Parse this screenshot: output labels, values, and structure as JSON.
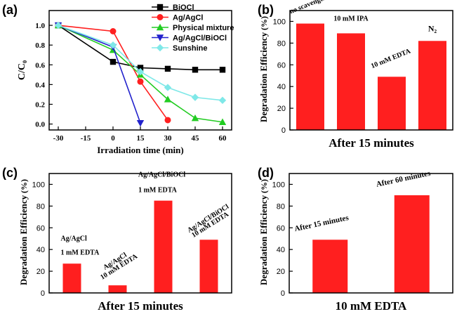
{
  "colors": {
    "bar": "#ff1f1f",
    "axis": "#000000",
    "biocl": "#000000",
    "ag_agcl": "#ff2020",
    "physical": "#22cc22",
    "ag_agcl_biocl": "#2222cc",
    "sunshine": "#7fe8e8"
  },
  "chart_data": [
    {
      "panel": "a",
      "panel_label": "(a)",
      "type": "line",
      "xlabel": "Irradiation time (min)",
      "ylabel": "C/C₀",
      "xlim": [
        -35,
        65
      ],
      "ylim": [
        -0.06,
        1.15
      ],
      "xticks": [
        -30,
        -15,
        0,
        15,
        30,
        45,
        60
      ],
      "xtick_labels": [
        "-30",
        "-15",
        "0",
        "15",
        "30",
        "45",
        "60"
      ],
      "yticks": [
        0.0,
        0.2,
        0.4,
        0.6,
        0.8,
        1.0
      ],
      "ytick_labels": [
        "0.0",
        "0.2",
        "0.4",
        "0.6",
        "0.8",
        "1.0"
      ],
      "legend_position": "top-right",
      "series": [
        {
          "name": "BiOCl",
          "marker": "square",
          "color_key": "biocl",
          "x": [
            -30,
            0,
            15,
            30,
            45,
            60
          ],
          "y": [
            1.0,
            0.63,
            0.57,
            0.56,
            0.55,
            0.55
          ]
        },
        {
          "name": "Ag/AgCl",
          "marker": "circle",
          "color_key": "ag_agcl",
          "x": [
            -30,
            0,
            15,
            30
          ],
          "y": [
            1.0,
            0.94,
            0.43,
            0.04
          ]
        },
        {
          "name": "Physical mixture",
          "marker": "triangle-up",
          "color_key": "physical",
          "x": [
            -30,
            0,
            15,
            30,
            45,
            60
          ],
          "y": [
            1.0,
            0.75,
            0.5,
            0.25,
            0.06,
            0.02
          ]
        },
        {
          "name": "Ag/AgCl/BiOCl",
          "marker": "triangle-down",
          "color_key": "ag_agcl_biocl",
          "x": [
            -30,
            0,
            15
          ],
          "y": [
            1.0,
            0.78,
            0.01
          ]
        },
        {
          "name": "Sunshine",
          "marker": "diamond",
          "color_key": "sunshine",
          "x": [
            -30,
            0,
            15,
            30,
            45,
            60
          ],
          "y": [
            1.0,
            0.8,
            0.53,
            0.37,
            0.27,
            0.24
          ]
        }
      ]
    },
    {
      "panel": "b",
      "panel_label": "(b)",
      "type": "bar",
      "title": "After 15 minutes",
      "ylabel": "Degradation Efficiency",
      "ylabel_unit": "(%)",
      "ylim": [
        0,
        110
      ],
      "yticks": [
        0,
        20,
        40,
        60,
        80,
        100
      ],
      "ytick_labels": [
        "0",
        "20",
        "40",
        "60",
        "80",
        "100"
      ],
      "categories": [
        "no scavenger",
        "10 mM IPA",
        "10 mM EDTA",
        "N₂"
      ],
      "values": [
        98,
        89,
        49,
        82
      ]
    },
    {
      "panel": "c",
      "panel_label": "(c)",
      "type": "bar",
      "title": "After 15 minutes",
      "ylabel": "Degradation Efficiency",
      "ylabel_unit": "(%)",
      "ylim": [
        0,
        110
      ],
      "yticks": [
        0,
        20,
        40,
        60,
        80,
        100
      ],
      "ytick_labels": [
        "0",
        "20",
        "40",
        "60",
        "80",
        "100"
      ],
      "categories": [
        "Ag/AgCl 1 mM EDTA",
        "Ag/AgCl 10 mM EDTA",
        "Ag/AgCl/BiOCl 1 mM EDTA",
        "Ag/AgCl/BiOCl 10 mM EDTA"
      ],
      "category_lines": [
        [
          "Ag/AgCl",
          "1 mM EDTA"
        ],
        [
          "Ag/AgCl",
          "10 mM EDTA"
        ],
        [
          "Ag/AgCl/BiOCl",
          "1 mM EDTA"
        ],
        [
          "Ag/AgCl/BiOCl",
          "10 mM EDTA"
        ]
      ],
      "values": [
        27,
        7,
        85,
        49
      ]
    },
    {
      "panel": "d",
      "panel_label": "(d)",
      "type": "bar",
      "title": "10 mM EDTA",
      "ylabel": "Degradation Efficiency",
      "ylabel_unit": "(%)",
      "ylim": [
        0,
        110
      ],
      "yticks": [
        0,
        20,
        40,
        60,
        80,
        100
      ],
      "ytick_labels": [
        "0",
        "20",
        "40",
        "60",
        "80",
        "100"
      ],
      "categories": [
        "After 15 minutes",
        "After 60 minutes"
      ],
      "values": [
        49,
        90
      ]
    }
  ]
}
